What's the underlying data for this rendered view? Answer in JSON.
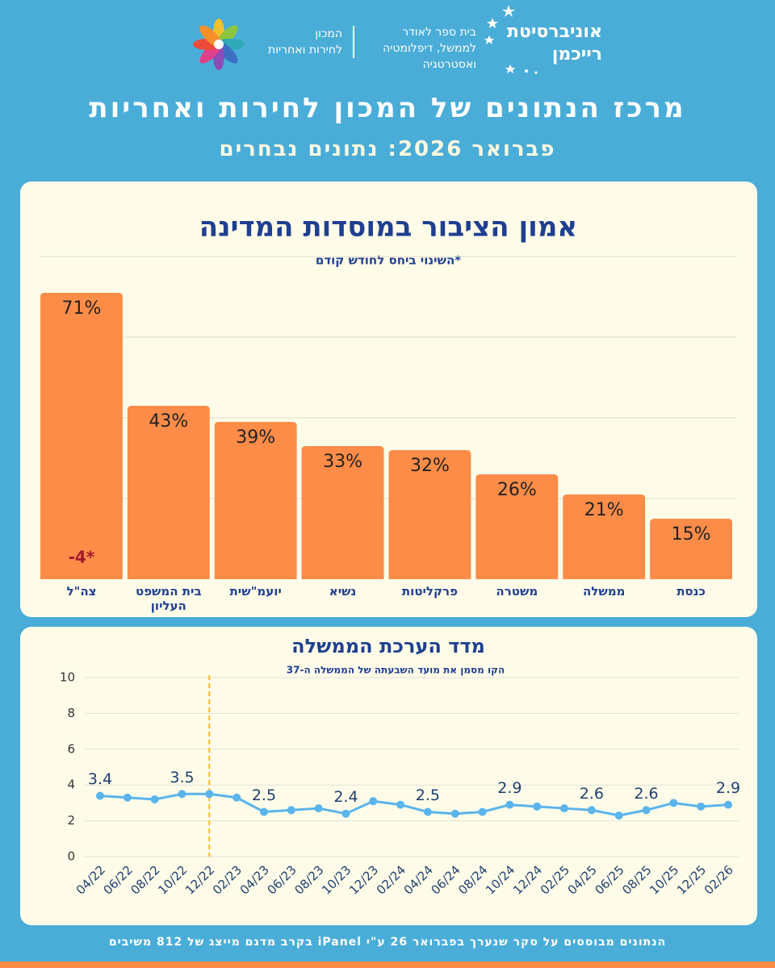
{
  "header": {
    "university": [
      "אוניברסיטת",
      "רייכמן"
    ],
    "school": [
      "בית ספר לאודר",
      "לממשל, דיפלומטיה",
      "ואסטרטגיה"
    ],
    "institute": [
      "המכון",
      "לחירות ואחריות"
    ],
    "title": "מרכז הנתונים של המכון לחירות ואחריות",
    "subtitle": "פברואר 2026: נתונים נבחרים"
  },
  "chart_data": [
    {
      "type": "bar",
      "title": "אמון הציבור במוסדות המדינה",
      "subtitle": "*השינוי ביחס לחודש קודם",
      "categories": [
        "צה\"ל",
        "בית המשפט העליון",
        "יועמ\"שית",
        "נשיא",
        "פרקליטות",
        "משטרה",
        "ממשלה",
        "כנסת"
      ],
      "values": [
        71,
        43,
        39,
        33,
        32,
        26,
        21,
        15
      ],
      "value_labels": [
        "71%",
        "43%",
        "39%",
        "33%",
        "32%",
        "26%",
        "21%",
        "15%"
      ],
      "annotation": "-4*",
      "color": "#fd8c48",
      "ylim": [
        0,
        80
      ],
      "grid": true
    },
    {
      "type": "line",
      "title": "מדד הערכת הממשלה",
      "subtitle": "הקו מסמן את מועד השבעתה של הממשלה ה-37",
      "categories": [
        "04/22",
        "06/22",
        "08/22",
        "10/22",
        "12/22",
        "02/23",
        "04/23",
        "06/23",
        "08/23",
        "10/23",
        "12/23",
        "02/24",
        "04/24",
        "06/24",
        "08/24",
        "10/24",
        "12/24",
        "02/25",
        "04/25",
        "06/25",
        "08/25",
        "10/25",
        "12/25",
        "02/26"
      ],
      "values": [
        3.4,
        3.3,
        3.2,
        3.5,
        3.5,
        3.3,
        2.5,
        2.6,
        2.7,
        2.4,
        3.1,
        2.9,
        2.5,
        2.4,
        2.5,
        2.9,
        2.8,
        2.7,
        2.6,
        2.3,
        2.6,
        3.0,
        2.8,
        2.9
      ],
      "value_labels": [
        "3.4",
        null,
        null,
        "3.5",
        null,
        null,
        "2.5",
        null,
        null,
        "2.4",
        null,
        null,
        "2.5",
        null,
        null,
        "2.9",
        null,
        null,
        "2.6",
        null,
        "2.6",
        null,
        null,
        "2.9"
      ],
      "marker_category": "12/22",
      "color": "#5bb4ec",
      "ylim": [
        0,
        10
      ],
      "yticks": [
        0,
        2,
        4,
        6,
        8,
        10
      ],
      "grid": true
    }
  ],
  "footer": "הנתונים מבוססים על סקר שנערך בפברואר 26 ע\"י iPanel בקרב מדגם מייצג של 812 משיבים"
}
